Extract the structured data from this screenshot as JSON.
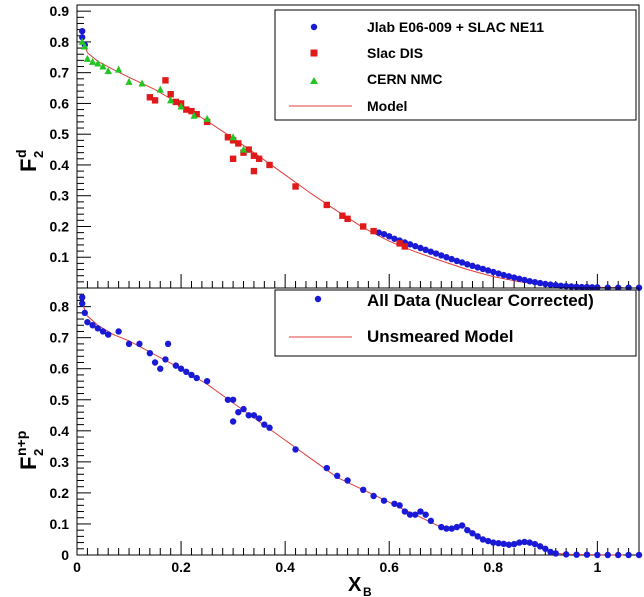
{
  "chart_data": [
    {
      "type": "scatter",
      "ylabel_main": "F",
      "ylabel_sub": "2",
      "ylabel_sup": "d",
      "ylim": [
        0,
        0.92
      ],
      "xlim": [
        0,
        1.08
      ],
      "y_ticks": [
        "0.1",
        "0.2",
        "0.3",
        "0.4",
        "0.5",
        "0.6",
        "0.7",
        "0.8",
        "0.9"
      ],
      "legend": {
        "placement": "top-right",
        "entries": [
          {
            "label": "Jlab E06-009 + SLAC NE11",
            "marker": "circle",
            "color": "#1a1ad6"
          },
          {
            "label": "Slac DIS",
            "marker": "square",
            "color": "#e01a1a"
          },
          {
            "label": "CERN NMC",
            "marker": "triangle",
            "color": "#22c622"
          },
          {
            "label": "Model",
            "marker": "line",
            "color": "#e03c3c"
          }
        ]
      },
      "model": {
        "name": "Model",
        "color": "#e03c3c",
        "points": [
          [
            0.01,
            0.81
          ],
          [
            0.02,
            0.765
          ],
          [
            0.04,
            0.737
          ],
          [
            0.07,
            0.71
          ],
          [
            0.1,
            0.685
          ],
          [
            0.15,
            0.645
          ],
          [
            0.2,
            0.595
          ],
          [
            0.25,
            0.543
          ],
          [
            0.3,
            0.487
          ],
          [
            0.35,
            0.428
          ],
          [
            0.4,
            0.368
          ],
          [
            0.45,
            0.307
          ],
          [
            0.5,
            0.25
          ],
          [
            0.55,
            0.196
          ],
          [
            0.6,
            0.152
          ],
          [
            0.65,
            0.118
          ],
          [
            0.7,
            0.088
          ],
          [
            0.75,
            0.06
          ],
          [
            0.8,
            0.037
          ],
          [
            0.85,
            0.02
          ],
          [
            0.9,
            0.01
          ],
          [
            0.95,
            0.004
          ],
          [
            1.0,
            0.002
          ],
          [
            1.05,
            0.001
          ]
        ]
      },
      "series": [
        {
          "name": "Jlab E06-009 + SLAC NE11",
          "marker": "circle",
          "color": "#1a1ad6",
          "points": [
            [
              0.01,
              0.835
            ],
            [
              0.01,
              0.815
            ],
            [
              0.015,
              0.79
            ],
            [
              0.58,
              0.18
            ],
            [
              0.59,
              0.175
            ],
            [
              0.6,
              0.168
            ],
            [
              0.61,
              0.16
            ],
            [
              0.62,
              0.154
            ],
            [
              0.63,
              0.148
            ],
            [
              0.64,
              0.142
            ],
            [
              0.65,
              0.136
            ],
            [
              0.66,
              0.13
            ],
            [
              0.67,
              0.124
            ],
            [
              0.68,
              0.118
            ],
            [
              0.69,
              0.112
            ],
            [
              0.7,
              0.106
            ],
            [
              0.71,
              0.1
            ],
            [
              0.72,
              0.094
            ],
            [
              0.73,
              0.088
            ],
            [
              0.74,
              0.083
            ],
            [
              0.75,
              0.077
            ],
            [
              0.76,
              0.072
            ],
            [
              0.77,
              0.067
            ],
            [
              0.78,
              0.062
            ],
            [
              0.79,
              0.057
            ],
            [
              0.8,
              0.052
            ],
            [
              0.81,
              0.047
            ],
            [
              0.82,
              0.042
            ],
            [
              0.83,
              0.038
            ],
            [
              0.84,
              0.034
            ],
            [
              0.85,
              0.03
            ],
            [
              0.86,
              0.026
            ],
            [
              0.87,
              0.022
            ],
            [
              0.88,
              0.019
            ],
            [
              0.89,
              0.016
            ],
            [
              0.9,
              0.013
            ],
            [
              0.91,
              0.011
            ],
            [
              0.92,
              0.009
            ],
            [
              0.93,
              0.007
            ],
            [
              0.94,
              0.006
            ],
            [
              0.95,
              0.005
            ],
            [
              0.96,
              0.004
            ],
            [
              0.97,
              0.003
            ],
            [
              0.98,
              0.003
            ],
            [
              0.99,
              0.002
            ],
            [
              1.0,
              0.002
            ],
            [
              1.02,
              0.001
            ],
            [
              1.04,
              0.001
            ],
            [
              1.06,
              0.001
            ],
            [
              1.08,
              0.001
            ]
          ]
        },
        {
          "name": "Slac DIS",
          "marker": "square",
          "color": "#e01a1a",
          "points": [
            [
              0.14,
              0.62
            ],
            [
              0.15,
              0.61
            ],
            [
              0.17,
              0.675
            ],
            [
              0.18,
              0.63
            ],
            [
              0.19,
              0.605
            ],
            [
              0.2,
              0.6
            ],
            [
              0.21,
              0.58
            ],
            [
              0.22,
              0.575
            ],
            [
              0.23,
              0.565
            ],
            [
              0.25,
              0.54
            ],
            [
              0.29,
              0.49
            ],
            [
              0.3,
              0.48
            ],
            [
              0.3,
              0.42
            ],
            [
              0.31,
              0.47
            ],
            [
              0.32,
              0.44
            ],
            [
              0.33,
              0.45
            ],
            [
              0.34,
              0.38
            ],
            [
              0.34,
              0.43
            ],
            [
              0.35,
              0.42
            ],
            [
              0.37,
              0.4
            ],
            [
              0.42,
              0.33
            ],
            [
              0.48,
              0.27
            ],
            [
              0.51,
              0.235
            ],
            [
              0.52,
              0.225
            ],
            [
              0.55,
              0.2
            ],
            [
              0.57,
              0.185
            ],
            [
              0.62,
              0.145
            ],
            [
              0.63,
              0.135
            ]
          ]
        },
        {
          "name": "CERN NMC",
          "marker": "triangle",
          "color": "#22c622",
          "points": [
            [
              0.01,
              0.8
            ],
            [
              0.015,
              0.785
            ],
            [
              0.02,
              0.745
            ],
            [
              0.03,
              0.735
            ],
            [
              0.04,
              0.73
            ],
            [
              0.05,
              0.72
            ],
            [
              0.06,
              0.705
            ],
            [
              0.08,
              0.71
            ],
            [
              0.1,
              0.67
            ],
            [
              0.125,
              0.665
            ],
            [
              0.16,
              0.645
            ],
            [
              0.18,
              0.61
            ],
            [
              0.2,
              0.59
            ],
            [
              0.225,
              0.56
            ],
            [
              0.25,
              0.55
            ],
            [
              0.3,
              0.49
            ],
            [
              0.32,
              0.45
            ]
          ]
        }
      ]
    },
    {
      "type": "scatter",
      "xlabel_main": "X",
      "xlabel_sub": "B",
      "ylabel_main": "F",
      "ylabel_sub": "2",
      "ylabel_sup": "n+p",
      "ylim": [
        0,
        0.86
      ],
      "xlim": [
        0,
        1.08
      ],
      "x_ticks": [
        "0",
        "0.2",
        "0.4",
        "0.6",
        "0.8",
        "1"
      ],
      "y_ticks": [
        "0",
        "0.1",
        "0.2",
        "0.3",
        "0.4",
        "0.5",
        "0.6",
        "0.7",
        "0.8"
      ],
      "legend": {
        "placement": "top-right",
        "entries": [
          {
            "label": "All Data (Nuclear Corrected)",
            "marker": "circle",
            "color": "#1a1ad6"
          },
          {
            "label": "Unsmeared Model",
            "marker": "line",
            "color": "#e03c3c"
          }
        ]
      },
      "model": {
        "name": "Unsmeared Model",
        "color": "#e03c3c",
        "points": [
          [
            0.01,
            0.81
          ],
          [
            0.02,
            0.77
          ],
          [
            0.04,
            0.74
          ],
          [
            0.07,
            0.71
          ],
          [
            0.1,
            0.69
          ],
          [
            0.15,
            0.645
          ],
          [
            0.2,
            0.6
          ],
          [
            0.25,
            0.55
          ],
          [
            0.3,
            0.49
          ],
          [
            0.35,
            0.43
          ],
          [
            0.4,
            0.37
          ],
          [
            0.45,
            0.31
          ],
          [
            0.5,
            0.25
          ],
          [
            0.55,
            0.21
          ],
          [
            0.6,
            0.17
          ],
          [
            0.63,
            0.145
          ],
          [
            0.65,
            0.13
          ],
          [
            0.68,
            0.105
          ],
          [
            0.7,
            0.09
          ],
          [
            0.72,
            0.085
          ],
          [
            0.74,
            0.098
          ],
          [
            0.76,
            0.075
          ],
          [
            0.78,
            0.05
          ],
          [
            0.8,
            0.038
          ],
          [
            0.83,
            0.03
          ],
          [
            0.86,
            0.04
          ],
          [
            0.88,
            0.035
          ],
          [
            0.9,
            0.015
          ],
          [
            0.92,
            0.005
          ],
          [
            0.95,
            0.002
          ],
          [
            1.0,
            0.001
          ],
          [
            1.05,
            0.0
          ]
        ]
      },
      "series": [
        {
          "name": "All Data (Nuclear Corrected)",
          "marker": "circle",
          "color": "#1a1ad6",
          "points": [
            [
              0.01,
              0.83
            ],
            [
              0.01,
              0.81
            ],
            [
              0.015,
              0.78
            ],
            [
              0.02,
              0.75
            ],
            [
              0.03,
              0.74
            ],
            [
              0.04,
              0.73
            ],
            [
              0.05,
              0.72
            ],
            [
              0.06,
              0.71
            ],
            [
              0.08,
              0.72
            ],
            [
              0.1,
              0.68
            ],
            [
              0.12,
              0.68
            ],
            [
              0.14,
              0.65
            ],
            [
              0.15,
              0.62
            ],
            [
              0.16,
              0.6
            ],
            [
              0.17,
              0.63
            ],
            [
              0.175,
              0.68
            ],
            [
              0.19,
              0.61
            ],
            [
              0.2,
              0.6
            ],
            [
              0.21,
              0.59
            ],
            [
              0.22,
              0.58
            ],
            [
              0.23,
              0.57
            ],
            [
              0.25,
              0.56
            ],
            [
              0.29,
              0.5
            ],
            [
              0.3,
              0.5
            ],
            [
              0.3,
              0.43
            ],
            [
              0.31,
              0.46
            ],
            [
              0.32,
              0.47
            ],
            [
              0.33,
              0.45
            ],
            [
              0.34,
              0.45
            ],
            [
              0.35,
              0.44
            ],
            [
              0.36,
              0.42
            ],
            [
              0.37,
              0.41
            ],
            [
              0.42,
              0.34
            ],
            [
              0.48,
              0.28
            ],
            [
              0.5,
              0.255
            ],
            [
              0.52,
              0.24
            ],
            [
              0.55,
              0.21
            ],
            [
              0.57,
              0.19
            ],
            [
              0.59,
              0.175
            ],
            [
              0.61,
              0.165
            ],
            [
              0.62,
              0.16
            ],
            [
              0.63,
              0.14
            ],
            [
              0.64,
              0.13
            ],
            [
              0.65,
              0.13
            ],
            [
              0.66,
              0.14
            ],
            [
              0.67,
              0.13
            ],
            [
              0.68,
              0.11
            ],
            [
              0.7,
              0.09
            ],
            [
              0.71,
              0.085
            ],
            [
              0.72,
              0.085
            ],
            [
              0.73,
              0.09
            ],
            [
              0.74,
              0.095
            ],
            [
              0.75,
              0.08
            ],
            [
              0.76,
              0.07
            ],
            [
              0.77,
              0.06
            ],
            [
              0.78,
              0.05
            ],
            [
              0.79,
              0.045
            ],
            [
              0.8,
              0.04
            ],
            [
              0.81,
              0.038
            ],
            [
              0.82,
              0.036
            ],
            [
              0.83,
              0.033
            ],
            [
              0.84,
              0.035
            ],
            [
              0.85,
              0.04
            ],
            [
              0.86,
              0.042
            ],
            [
              0.87,
              0.04
            ],
            [
              0.88,
              0.035
            ],
            [
              0.89,
              0.028
            ],
            [
              0.9,
              0.02
            ],
            [
              0.91,
              0.01
            ],
            [
              0.92,
              0.005
            ],
            [
              0.94,
              0.002
            ],
            [
              0.96,
              0.001
            ],
            [
              0.98,
              0.001
            ],
            [
              1.0,
              0.0
            ],
            [
              1.02,
              0.0
            ],
            [
              1.04,
              0.0
            ],
            [
              1.06,
              0.0
            ],
            [
              1.08,
              0.0
            ]
          ]
        }
      ]
    }
  ]
}
